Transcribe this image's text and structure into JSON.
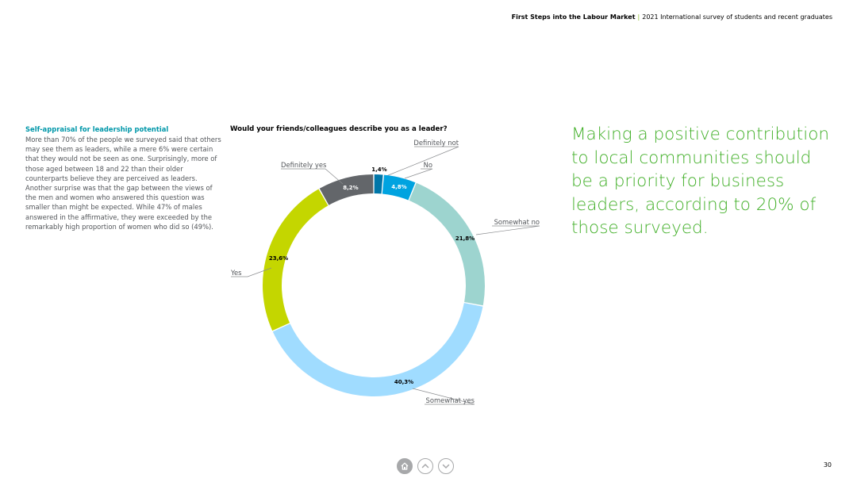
{
  "header": {
    "title": "First Steps into the Labour Market",
    "separator": "|",
    "subtitle": "2021 International survey of students and recent graduates"
  },
  "sidebar": {
    "heading": "Self-appraisal for leadership potential",
    "body": "More than 70% of the people we surveyed said that others may see them as leaders, while a mere 6% were certain that they would not be seen as one. Surprisingly, more of those aged between 18 and 22 than their older counterparts believe they are perceived as leaders. Another surprise was that the gap between the views of the men and women who answered this question was smaller than might be expected. While 47% of males answered in the affirmative, they were exceeded by the remarkably high proportion of women who did so (49%)."
  },
  "callout": {
    "text": "Making a positive contribution to local communities should be a priority for business leaders, according to 20% of those surveyed."
  },
  "chart_data": {
    "type": "pie",
    "variant": "donut",
    "title": "Would your friends/colleagues describe you as a leader?",
    "legend": "none",
    "slices": [
      {
        "label": "Definitely not",
        "value": 1.4,
        "display": "1,4%",
        "color": "#0076a8",
        "value_label_color": "#000000"
      },
      {
        "label": "No",
        "value": 4.8,
        "display": "4,8%",
        "color": "#00a3e0",
        "value_label_color": "#ffffff"
      },
      {
        "label": "Somewhat no",
        "value": 21.8,
        "display": "21,8%",
        "color": "#9dd4cf",
        "value_label_color": "#000000"
      },
      {
        "label": "Somewhat yes",
        "value": 40.3,
        "display": "40,3%",
        "color": "#a0dcff",
        "value_label_color": "#000000"
      },
      {
        "label": "Yes",
        "value": 23.6,
        "display": "23,6%",
        "color": "#c4d600",
        "value_label_color": "#000000"
      },
      {
        "label": "Definitely yes",
        "value": 8.2,
        "display": "8,2%",
        "color": "#63666a",
        "value_label_color": "#ffffff"
      }
    ]
  },
  "navigation": {
    "home_icon": "home-icon",
    "prev_icon": "chevron-up-icon",
    "next_icon": "chevron-down-icon"
  },
  "page_number": "30"
}
